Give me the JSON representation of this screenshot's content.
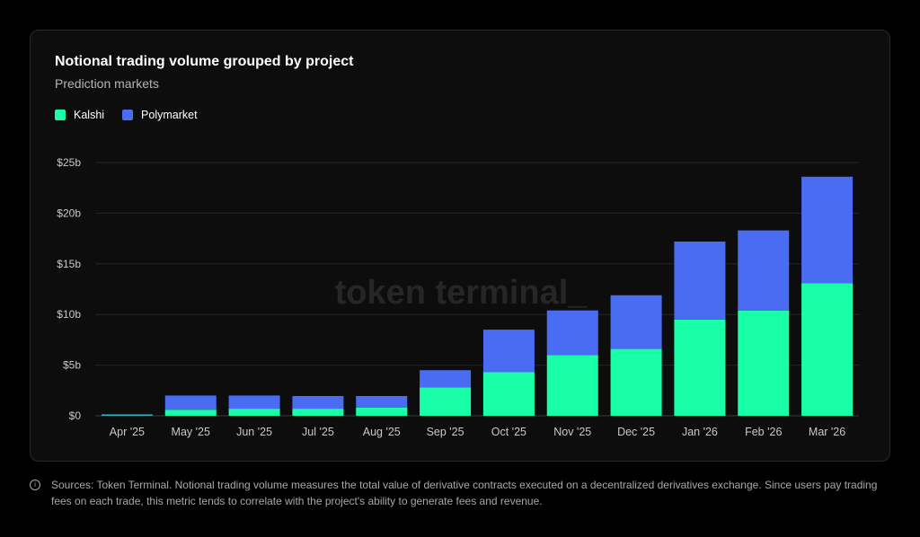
{
  "chart_card": {
    "title": "Notional trading volume grouped by project",
    "subtitle": "Prediction markets",
    "watermark": "token terminal_"
  },
  "footer": {
    "icon": "info-icon",
    "text": "Sources: Token Terminal. Notional trading volume measures the total value of derivative contracts executed on a decentralized derivatives exchange. Since users pay trading fees on each trade, this metric tends to correlate with the project's ability to generate fees and revenue."
  },
  "colors": {
    "kalshi": "#19ffa7",
    "polymarket": "#4a6cf2",
    "grid": "#262626",
    "axis_text": "#c8c8c8"
  },
  "chart_data": {
    "type": "bar",
    "stacked": true,
    "categories": [
      "Apr '25",
      "May '25",
      "Jun '25",
      "Jul '25",
      "Aug '25",
      "Sep '25",
      "Oct '25",
      "Nov '25",
      "Dec '25",
      "Jan '26",
      "Feb '26",
      "Mar '26"
    ],
    "series": [
      {
        "name": "Kalshi",
        "values": [
          0.05,
          0.6,
          0.7,
          0.7,
          0.8,
          2.8,
          4.3,
          6.0,
          6.6,
          9.5,
          10.4,
          13.1
        ]
      },
      {
        "name": "Polymarket",
        "values": [
          0.1,
          1.4,
          1.3,
          1.25,
          1.15,
          1.7,
          4.2,
          4.4,
          5.3,
          7.7,
          7.9,
          10.5
        ]
      }
    ],
    "title": "Notional trading volume grouped by project",
    "subtitle": "Prediction markets",
    "xlabel": "",
    "ylabel": "",
    "ylim": [
      0,
      25
    ],
    "yticks": [
      0,
      5,
      10,
      15,
      20,
      25
    ],
    "ytick_labels": [
      "$0",
      "$5b",
      "$10b",
      "$15b",
      "$20b",
      "$25b"
    ],
    "grid": true,
    "legend": "top-left"
  }
}
